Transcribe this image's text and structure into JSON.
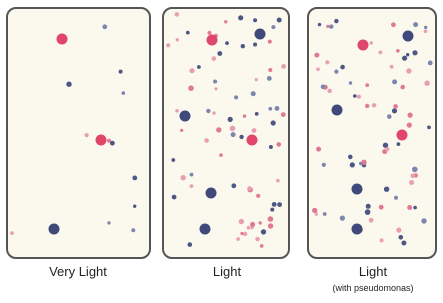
{
  "panels": [
    {
      "label": "Very Light"
    },
    {
      "label": "Light"
    },
    {
      "label": "Light",
      "note": "(with pseudomonas)"
    }
  ]
}
